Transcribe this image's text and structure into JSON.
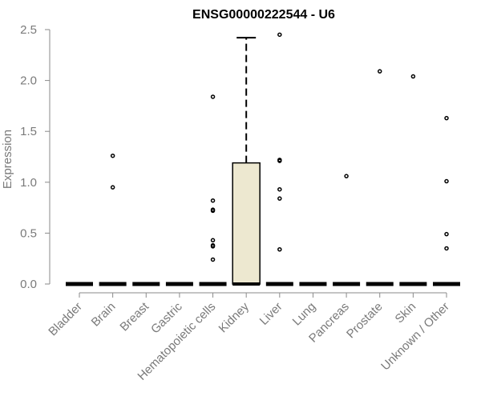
{
  "chart_data": {
    "type": "box",
    "title": "ENSG00000222544 - U6",
    "xlabel": "",
    "ylabel": "Expression",
    "ylim": [
      0,
      2.5
    ],
    "yticks": [
      "0.0",
      "0.5",
      "1.0",
      "1.5",
      "2.0",
      "2.5"
    ],
    "categories": [
      "Bladder",
      "Brain",
      "Breast",
      "Gastric",
      "Hematopoietic cells",
      "Kidney",
      "Liver",
      "Lung",
      "Pancreas",
      "Prostate",
      "Skin",
      "Unknown / Other"
    ],
    "boxes": [
      {
        "q1": 0,
        "median": 0,
        "q3": 0,
        "whisker_low": 0,
        "whisker_high": 0
      },
      {
        "q1": 0,
        "median": 0,
        "q3": 0,
        "whisker_low": 0,
        "whisker_high": 0
      },
      {
        "q1": 0,
        "median": 0,
        "q3": 0,
        "whisker_low": 0,
        "whisker_high": 0
      },
      {
        "q1": 0,
        "median": 0,
        "q3": 0,
        "whisker_low": 0,
        "whisker_high": 0
      },
      {
        "q1": 0,
        "median": 0,
        "q3": 0,
        "whisker_low": 0,
        "whisker_high": 0
      },
      {
        "q1": 0,
        "median": 0,
        "q3": 1.19,
        "whisker_low": 0,
        "whisker_high": 2.42
      },
      {
        "q1": 0,
        "median": 0,
        "q3": 0,
        "whisker_low": 0,
        "whisker_high": 0
      },
      {
        "q1": 0,
        "median": 0,
        "q3": 0,
        "whisker_low": 0,
        "whisker_high": 0
      },
      {
        "q1": 0,
        "median": 0,
        "q3": 0,
        "whisker_low": 0,
        "whisker_high": 0
      },
      {
        "q1": 0,
        "median": 0,
        "q3": 0,
        "whisker_low": 0,
        "whisker_high": 0
      },
      {
        "q1": 0,
        "median": 0,
        "q3": 0,
        "whisker_low": 0,
        "whisker_high": 0
      },
      {
        "q1": 0,
        "median": 0,
        "q3": 0,
        "whisker_low": 0,
        "whisker_high": 0
      }
    ],
    "outliers": [
      [],
      [
        1.26,
        0.95
      ],
      [],
      [],
      [
        1.84,
        0.82,
        0.73,
        0.72,
        0.43,
        0.38,
        0.37,
        0.24
      ],
      [],
      [
        2.45,
        1.22,
        1.21,
        0.93,
        0.84,
        0.34
      ],
      [],
      [
        1.06
      ],
      [
        2.09
      ],
      [
        2.04
      ],
      [
        1.63,
        1.01,
        0.49,
        0.35
      ]
    ],
    "colors": {
      "box_fill": "#ede8d0",
      "box_stroke": "#000000",
      "axis": "#8a8a8a",
      "text": "#7a7a7a"
    },
    "grid": false
  }
}
